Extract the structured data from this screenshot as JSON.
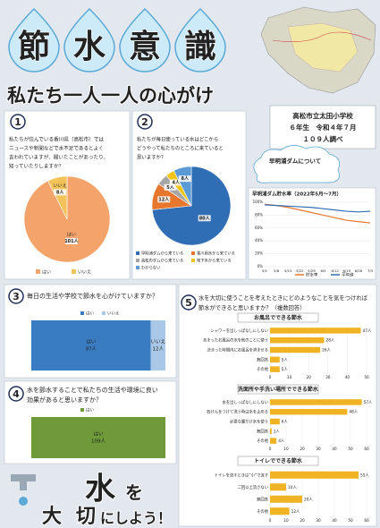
{
  "header": {
    "title_chars": [
      "節",
      "水",
      "意",
      "識"
    ],
    "subtitle": "私たち一人一人の心がけ"
  },
  "school": {
    "lines": [
      "高松市立太田小学校",
      "６年生　令和４年７月",
      "１０９人調べ"
    ]
  },
  "q1": {
    "number": "1",
    "question": [
      "私たちが住んでいる香川県（高松市）では",
      "ニュースや新聞などで水不足であるとよく",
      "言われていますが、聞いたことがあったり、",
      "知っていたりしますか？"
    ],
    "chart": {
      "type": "pie",
      "categories": [
        "はい",
        "いいえ"
      ],
      "values": [
        101,
        8
      ],
      "value_labels": [
        "101人",
        "8人"
      ],
      "colors": [
        "#f4a46b",
        "#f3c35a"
      ]
    }
  },
  "q2": {
    "number": "2",
    "question": [
      "私たちが毎日使っている水はどこから",
      "どうやって私たちのところに来ていると",
      "思いますか？"
    ],
    "chart": {
      "type": "pie",
      "categories": [
        "早明浦ダムから来ている",
        "香川用水から来ている",
        "高松のダムから来ている",
        "地下水から来ている",
        "わからない"
      ],
      "values": [
        80,
        12,
        5,
        4,
        8
      ],
      "value_labels": [
        "80人",
        "12人",
        "5人",
        "4人",
        "8人"
      ],
      "colors": [
        "#2f6db5",
        "#e8772e",
        "#a5a5a5",
        "#f0c419",
        "#5b9bd5"
      ]
    }
  },
  "dam_note": {
    "title": "早明浦ダムについて"
  },
  "dam_chart": {
    "type": "line",
    "title": "早明浦ダム貯水率（2022年5月〜7月）",
    "categories": [
      "5/1",
      "5/8",
      "5/15",
      "5/22",
      "5/29",
      "6/5",
      "6/12",
      "6/19",
      "6/26",
      "7/3"
    ],
    "series": [
      {
        "name": "貯水率",
        "color": "#e8772e",
        "values": [
          97,
          95,
          92,
          88,
          84,
          80,
          76,
          72,
          70,
          68
        ]
      },
      {
        "name": "平年値",
        "color": "#2f6db5",
        "values": [
          96,
          95,
          94,
          93,
          92,
          90,
          88,
          86,
          85,
          86
        ]
      }
    ],
    "ylim": [
      0,
      100
    ],
    "yticks": [
      {
        "value": 0,
        "label": "0%"
      },
      {
        "value": 20,
        "label": "20%"
      },
      {
        "value": 40,
        "label": "40%"
      },
      {
        "value": 60,
        "label": "60%"
      },
      {
        "value": 80,
        "label": "80%"
      },
      {
        "value": 100,
        "label": "100%"
      }
    ],
    "grid": true
  },
  "q3": {
    "number": "3",
    "question": [
      "毎日の生活や学校で節水を心がけていますか？"
    ],
    "chart": {
      "type": "stacked_bar",
      "categories": [
        "はい",
        "いいえ"
      ],
      "values": [
        97,
        12
      ],
      "value_labels": [
        "97人",
        "12人"
      ],
      "colors": [
        "#3a7cc2",
        "#a9c7e6"
      ]
    }
  },
  "q4": {
    "number": "4",
    "question": [
      "水を節水することで私たちの生活や環境に良い",
      "効果があると思いますか？"
    ],
    "chart": {
      "type": "stacked_bar",
      "categories": [
        "はい"
      ],
      "values": [
        109
      ],
      "value_labels": [
        "109人"
      ],
      "colors": [
        "#6e9a3a"
      ]
    }
  },
  "q5": {
    "number": "5",
    "question": [
      "水を大切に使うことを考えたときにどのようなことを気をつければ",
      "節水ができると思いますか？（複数回答）"
    ],
    "charts": [
      {
        "type": "hbar",
        "title": "お風呂でできる節水",
        "categories": [
          "シャワーを出しっぱなしにしない",
          "あまったお風呂の水を他のことに使う",
          "決まった時間内にお風呂を済ませる",
          "無回答",
          "その他"
        ],
        "values": [
          47,
          28,
          26,
          5,
          5
        ],
        "value_labels": [
          "47人",
          "28人",
          "26人",
          "5人",
          "5人"
        ],
        "color": "#f0b323",
        "xlim": [
          0,
          50
        ],
        "xticks": [
          0,
          10,
          20,
          30,
          40,
          50
        ]
      },
      {
        "type": "hbar",
        "title": "洗面所や手洗い場所でできる節水",
        "categories": [
          "水を出しっぱなしにしない",
          "石けんをつけて洗う時は水を止める",
          "必要な量だけ水を使う",
          "無回答",
          "その他"
        ],
        "values": [
          57,
          48,
          6,
          1,
          4
        ],
        "value_labels": [
          "57人",
          "48人",
          "6人",
          "1人",
          "4人"
        ],
        "color": "#f0b323",
        "xlim": [
          0,
          60
        ],
        "xticks": [
          0,
          10,
          20,
          30,
          40,
          50,
          60
        ]
      },
      {
        "type": "hbar",
        "title": "トイレでできる節水",
        "categories": [
          "トイレを流すときは“小”で流す",
          "二回以上流さない",
          "無回答",
          "その他"
        ],
        "values": [
          55,
          10,
          20,
          12
        ],
        "value_labels": [
          "55人",
          "10人",
          "20人",
          "12人"
        ],
        "color": "#f0b323",
        "xlim": [
          0,
          60
        ],
        "xticks": [
          0,
          10,
          20,
          30,
          40,
          50,
          60
        ]
      }
    ]
  },
  "footer": {
    "chars": [
      "水",
      "を",
      "大",
      "切",
      "にしよう！"
    ]
  }
}
